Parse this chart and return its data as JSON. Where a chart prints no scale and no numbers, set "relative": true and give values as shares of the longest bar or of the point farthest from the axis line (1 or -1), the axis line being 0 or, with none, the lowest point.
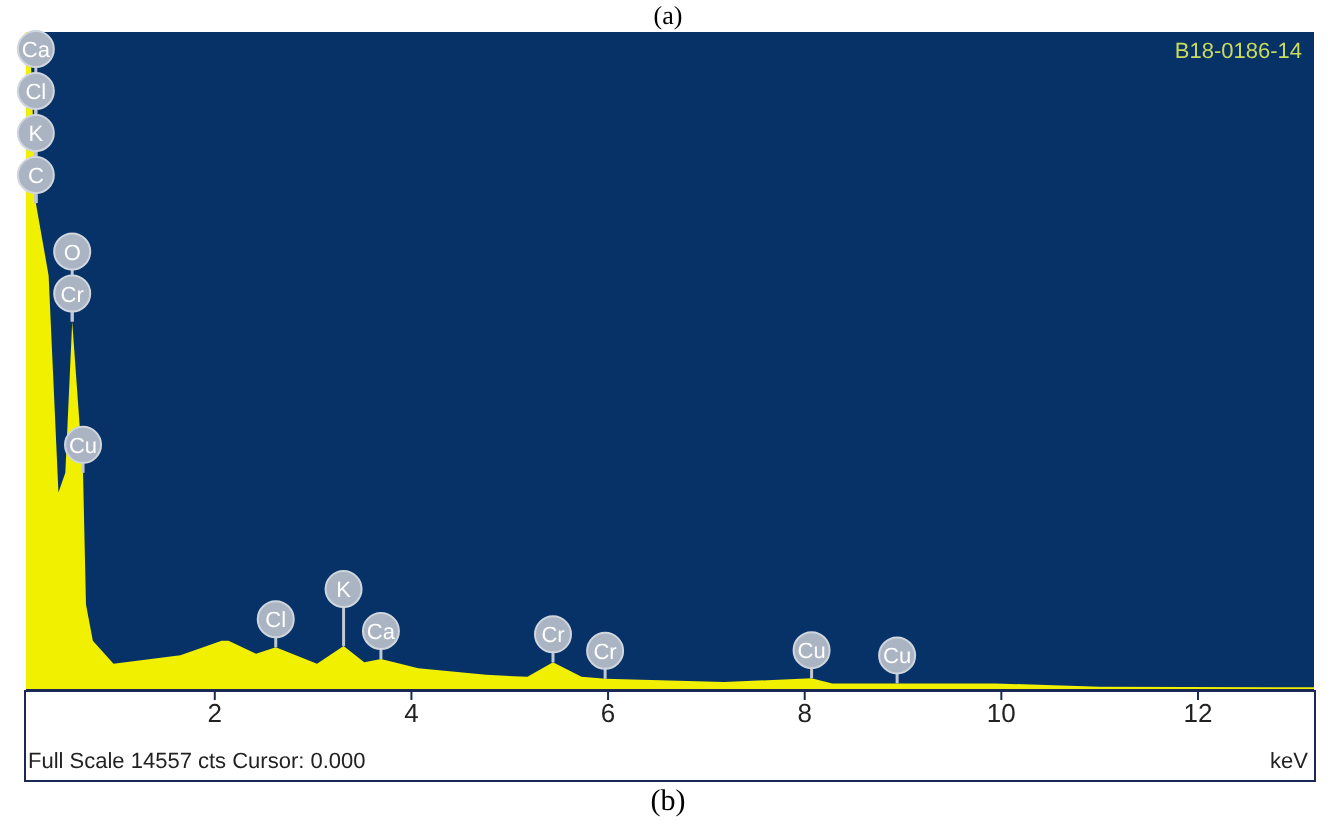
{
  "chart_data": {
    "type": "area",
    "relative": true,
    "xlabel": "keV",
    "x": [
      0.08,
      0.12,
      0.18,
      0.31,
      0.41,
      0.48,
      0.55,
      0.66,
      0.69,
      0.76,
      0.97,
      1.51,
      1.65,
      2.07,
      2.14,
      2.42,
      2.62,
      3.04,
      3.31,
      3.52,
      3.69,
      4.07,
      4.76,
      5.18,
      5.44,
      5.73,
      5.97,
      7.18,
      8.07,
      8.28,
      8.94,
      9.94,
      11,
      13.18
    ],
    "series": [
      {
        "color": "#f0f000",
        "values": [
          1.0,
          1.0,
          0.74,
          0.63,
          0.3,
          0.33,
          0.56,
          0.33,
          0.13,
          0.075,
          0.04,
          0.05,
          0.053,
          0.075,
          0.075,
          0.055,
          0.065,
          0.04,
          0.067,
          0.042,
          0.047,
          0.033,
          0.023,
          0.02,
          0.042,
          0.02,
          0.017,
          0.012,
          0.018,
          0.01,
          0.01,
          0.01,
          0.005,
          0.004
        ]
      }
    ],
    "xlim": [
      0.08,
      13.18
    ],
    "xticks": [
      2,
      4,
      6,
      8,
      10,
      12
    ],
    "annotations": [
      "(a)",
      "B18-0186-14",
      "Full Scale 14557 cts Cursor: 0.000",
      "(b)",
      {
        "text": "Ca",
        "x": 0.18,
        "y": 0.74
      },
      {
        "text": "Cl",
        "x": 0.18,
        "y": 0.74
      },
      {
        "text": "K",
        "x": 0.18,
        "y": 0.74
      },
      {
        "text": "C",
        "x": 0.18,
        "y": 0.74
      },
      {
        "text": "O",
        "x": 0.55,
        "y": 0.56
      },
      {
        "text": "Cr",
        "x": 0.55,
        "y": 0.56
      },
      {
        "text": "Cu",
        "x": 0.66,
        "y": 0.33
      },
      {
        "text": "Cl",
        "x": 2.62,
        "y": 0.065
      },
      {
        "text": "K",
        "x": 3.31,
        "y": 0.067
      },
      {
        "text": "Ca",
        "x": 3.69,
        "y": 0.047
      },
      {
        "text": "Cr",
        "x": 5.44,
        "y": 0.042
      },
      {
        "text": "Cr",
        "x": 5.97,
        "y": 0.017
      },
      {
        "text": "Cu",
        "x": 8.07,
        "y": 0.018
      },
      {
        "text": "Cu",
        "x": 8.94,
        "y": 0.01
      }
    ]
  }
}
